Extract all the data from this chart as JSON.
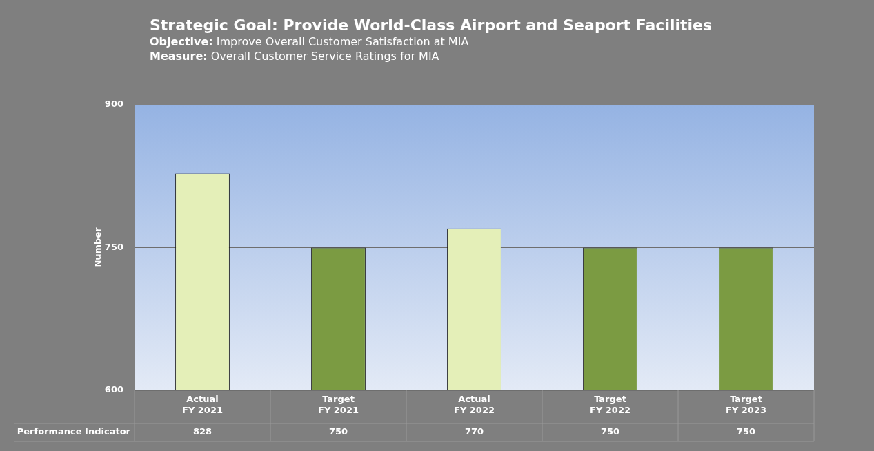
{
  "chart_data": {
    "type": "bar",
    "title": "Strategic Goal: Provide World-Class Airport and Seaport Facilities",
    "subtitle": "Objective: Improve Overall Customer Satisfaction at MIA",
    "annotations": [
      "Measure:  Overall Customer Service Ratings for MIA"
    ],
    "ylabel": "Number",
    "categories": [
      "Actual\nFY 2021",
      "Target\nFY 2021",
      "Actual\nFY 2022",
      "Target\nFY 2022",
      "Target\nFY 2023"
    ],
    "series": [
      {
        "name": "Performance Indicator",
        "values": [
          828,
          750,
          770,
          750,
          750
        ],
        "colors": [
          "#e4efb8",
          "#7b9b42",
          "#e4efb8",
          "#7b9b42",
          "#7b9b42"
        ]
      }
    ],
    "ylim": [
      600,
      900
    ],
    "yticks": [
      600,
      750,
      900
    ],
    "grid": "y",
    "data_labels": true
  }
}
